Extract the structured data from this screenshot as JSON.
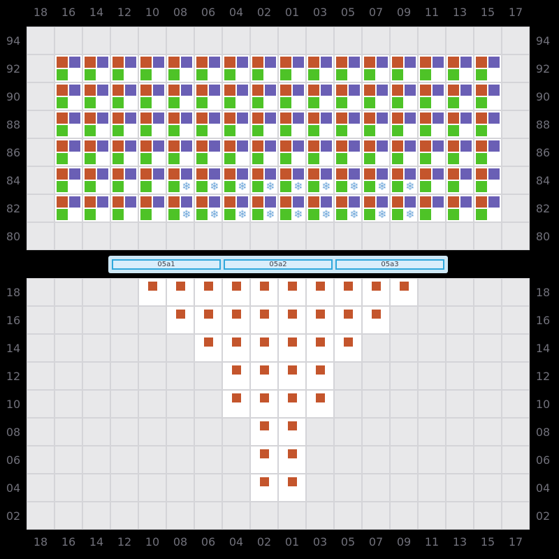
{
  "colors": {
    "background": "#000000",
    "grid-line": "#d4d4d8",
    "cell-empty": "#e8e8ea",
    "cell-occupied": "#ffffff",
    "axis-text": "#70707a",
    "orange": "#c4552c",
    "purple": "#6a5fb5",
    "green": "#4ec327",
    "snowflake": "#74aadb",
    "bar-container": "#cde7f5",
    "bar-fill": "#d9eefb",
    "bar-border": "#2fa8dc",
    "bar-text": "#3f3f48"
  },
  "icons": {
    "snowflake_glyph": "❄",
    "seat_icon_colors": [
      "orange",
      "purple",
      "green"
    ]
  },
  "column_labels": [
    "18",
    "16",
    "14",
    "12",
    "10",
    "08",
    "06",
    "04",
    "02",
    "01",
    "03",
    "05",
    "07",
    "09",
    "11",
    "13",
    "15",
    "17"
  ],
  "top_panel": {
    "row_labels": [
      "94",
      "92",
      "90",
      "88",
      "86",
      "84",
      "82",
      "80"
    ],
    "rows": [
      {
        "label": "94",
        "occupied": [],
        "snowflake": []
      },
      {
        "label": "92",
        "occupied": [
          "16",
          "14",
          "12",
          "10",
          "08",
          "06",
          "04",
          "02",
          "01",
          "03",
          "05",
          "07",
          "09",
          "11",
          "13",
          "15"
        ],
        "snowflake": []
      },
      {
        "label": "90",
        "occupied": [
          "16",
          "14",
          "12",
          "10",
          "08",
          "06",
          "04",
          "02",
          "01",
          "03",
          "05",
          "07",
          "09",
          "11",
          "13",
          "15"
        ],
        "snowflake": []
      },
      {
        "label": "88",
        "occupied": [
          "16",
          "14",
          "12",
          "10",
          "08",
          "06",
          "04",
          "02",
          "01",
          "03",
          "05",
          "07",
          "09",
          "11",
          "13",
          "15"
        ],
        "snowflake": []
      },
      {
        "label": "86",
        "occupied": [
          "16",
          "14",
          "12",
          "10",
          "08",
          "06",
          "04",
          "02",
          "01",
          "03",
          "05",
          "07",
          "09",
          "11",
          "13",
          "15"
        ],
        "snowflake": []
      },
      {
        "label": "84",
        "occupied": [
          "16",
          "14",
          "12",
          "10",
          "08",
          "06",
          "04",
          "02",
          "01",
          "03",
          "05",
          "07",
          "09",
          "11",
          "13",
          "15"
        ],
        "snowflake": [
          "08",
          "06",
          "04",
          "02",
          "01",
          "03",
          "05",
          "07",
          "09"
        ]
      },
      {
        "label": "82",
        "occupied": [
          "16",
          "14",
          "12",
          "10",
          "08",
          "06",
          "04",
          "02",
          "01",
          "03",
          "05",
          "07",
          "09",
          "11",
          "13",
          "15"
        ],
        "snowflake": [
          "08",
          "06",
          "04",
          "02",
          "01",
          "03",
          "05",
          "07",
          "09"
        ]
      },
      {
        "label": "80",
        "occupied": [],
        "snowflake": []
      }
    ]
  },
  "bottom_panel": {
    "row_labels": [
      "18",
      "16",
      "14",
      "12",
      "10",
      "08",
      "06",
      "04",
      "02"
    ],
    "rows": [
      {
        "label": "18",
        "occupied": [
          "10",
          "08",
          "06",
          "04",
          "02",
          "01",
          "03",
          "05",
          "07",
          "09"
        ]
      },
      {
        "label": "16",
        "occupied": [
          "08",
          "06",
          "04",
          "02",
          "01",
          "03",
          "05",
          "07"
        ]
      },
      {
        "label": "14",
        "occupied": [
          "06",
          "04",
          "02",
          "01",
          "03",
          "05"
        ]
      },
      {
        "label": "12",
        "occupied": [
          "04",
          "02",
          "01",
          "03"
        ]
      },
      {
        "label": "10",
        "occupied": [
          "04",
          "02",
          "01",
          "03"
        ]
      },
      {
        "label": "08",
        "occupied": [
          "02",
          "01"
        ]
      },
      {
        "label": "06",
        "occupied": [
          "02",
          "01"
        ]
      },
      {
        "label": "04",
        "occupied": [
          "02",
          "01"
        ]
      },
      {
        "label": "02",
        "occupied": []
      }
    ]
  },
  "bars": {
    "segments": [
      {
        "label": "05a1"
      },
      {
        "label": "05a2"
      },
      {
        "label": "05a3"
      }
    ]
  }
}
